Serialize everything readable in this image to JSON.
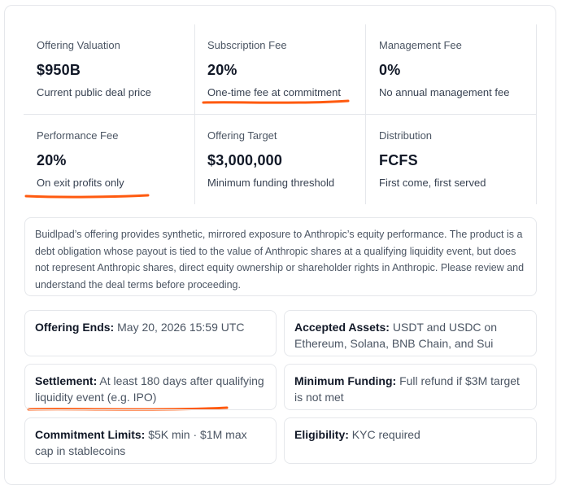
{
  "stats": [
    {
      "label": "Offering Valuation",
      "value": "$950B",
      "sub": "Current public deal price"
    },
    {
      "label": "Subscription Fee",
      "value": "20%",
      "sub": "One-time fee at commitment"
    },
    {
      "label": "Management Fee",
      "value": "0%",
      "sub": "No annual management fee"
    },
    {
      "label": "Performance Fee",
      "value": "20%",
      "sub": "On exit profits only"
    },
    {
      "label": "Offering Target",
      "value": "$3,000,000",
      "sub": "Minimum funding threshold"
    },
    {
      "label": "Distribution",
      "value": "FCFS",
      "sub": "First come, first served"
    }
  ],
  "disclaimer": "Buidlpad’s offering provides synthetic, mirrored exposure to Anthropic’s equity performance. The product is a debt obligation whose payout is tied to the value of Anthropic shares at a qualifying liquidity event, but does not represent Anthropic shares, direct equity ownership or shareholder rights in Anthropic. Please review and understand the deal terms before proceeding.",
  "details": [
    {
      "key": "Offering Ends:",
      "value": "May 20, 2026 15:59 UTC"
    },
    {
      "key": "Accepted Assets:",
      "value": "USDT and USDC on Ethereum, Solana, BNB Chain, and Sui"
    },
    {
      "key": "Settlement:",
      "value": "At least 180 days after qualifying liquidity event (e.g. IPO)"
    },
    {
      "key": "Minimum Funding:",
      "value": "Full refund if $3M target is not met"
    },
    {
      "key": "Commitment Limits:",
      "value": "$5K min · $1M max cap in stablecoins"
    },
    {
      "key": "Eligibility:",
      "value": "KYC required"
    }
  ],
  "colors": {
    "annotation": "#ff5a0f",
    "border": "#e5e7eb"
  }
}
